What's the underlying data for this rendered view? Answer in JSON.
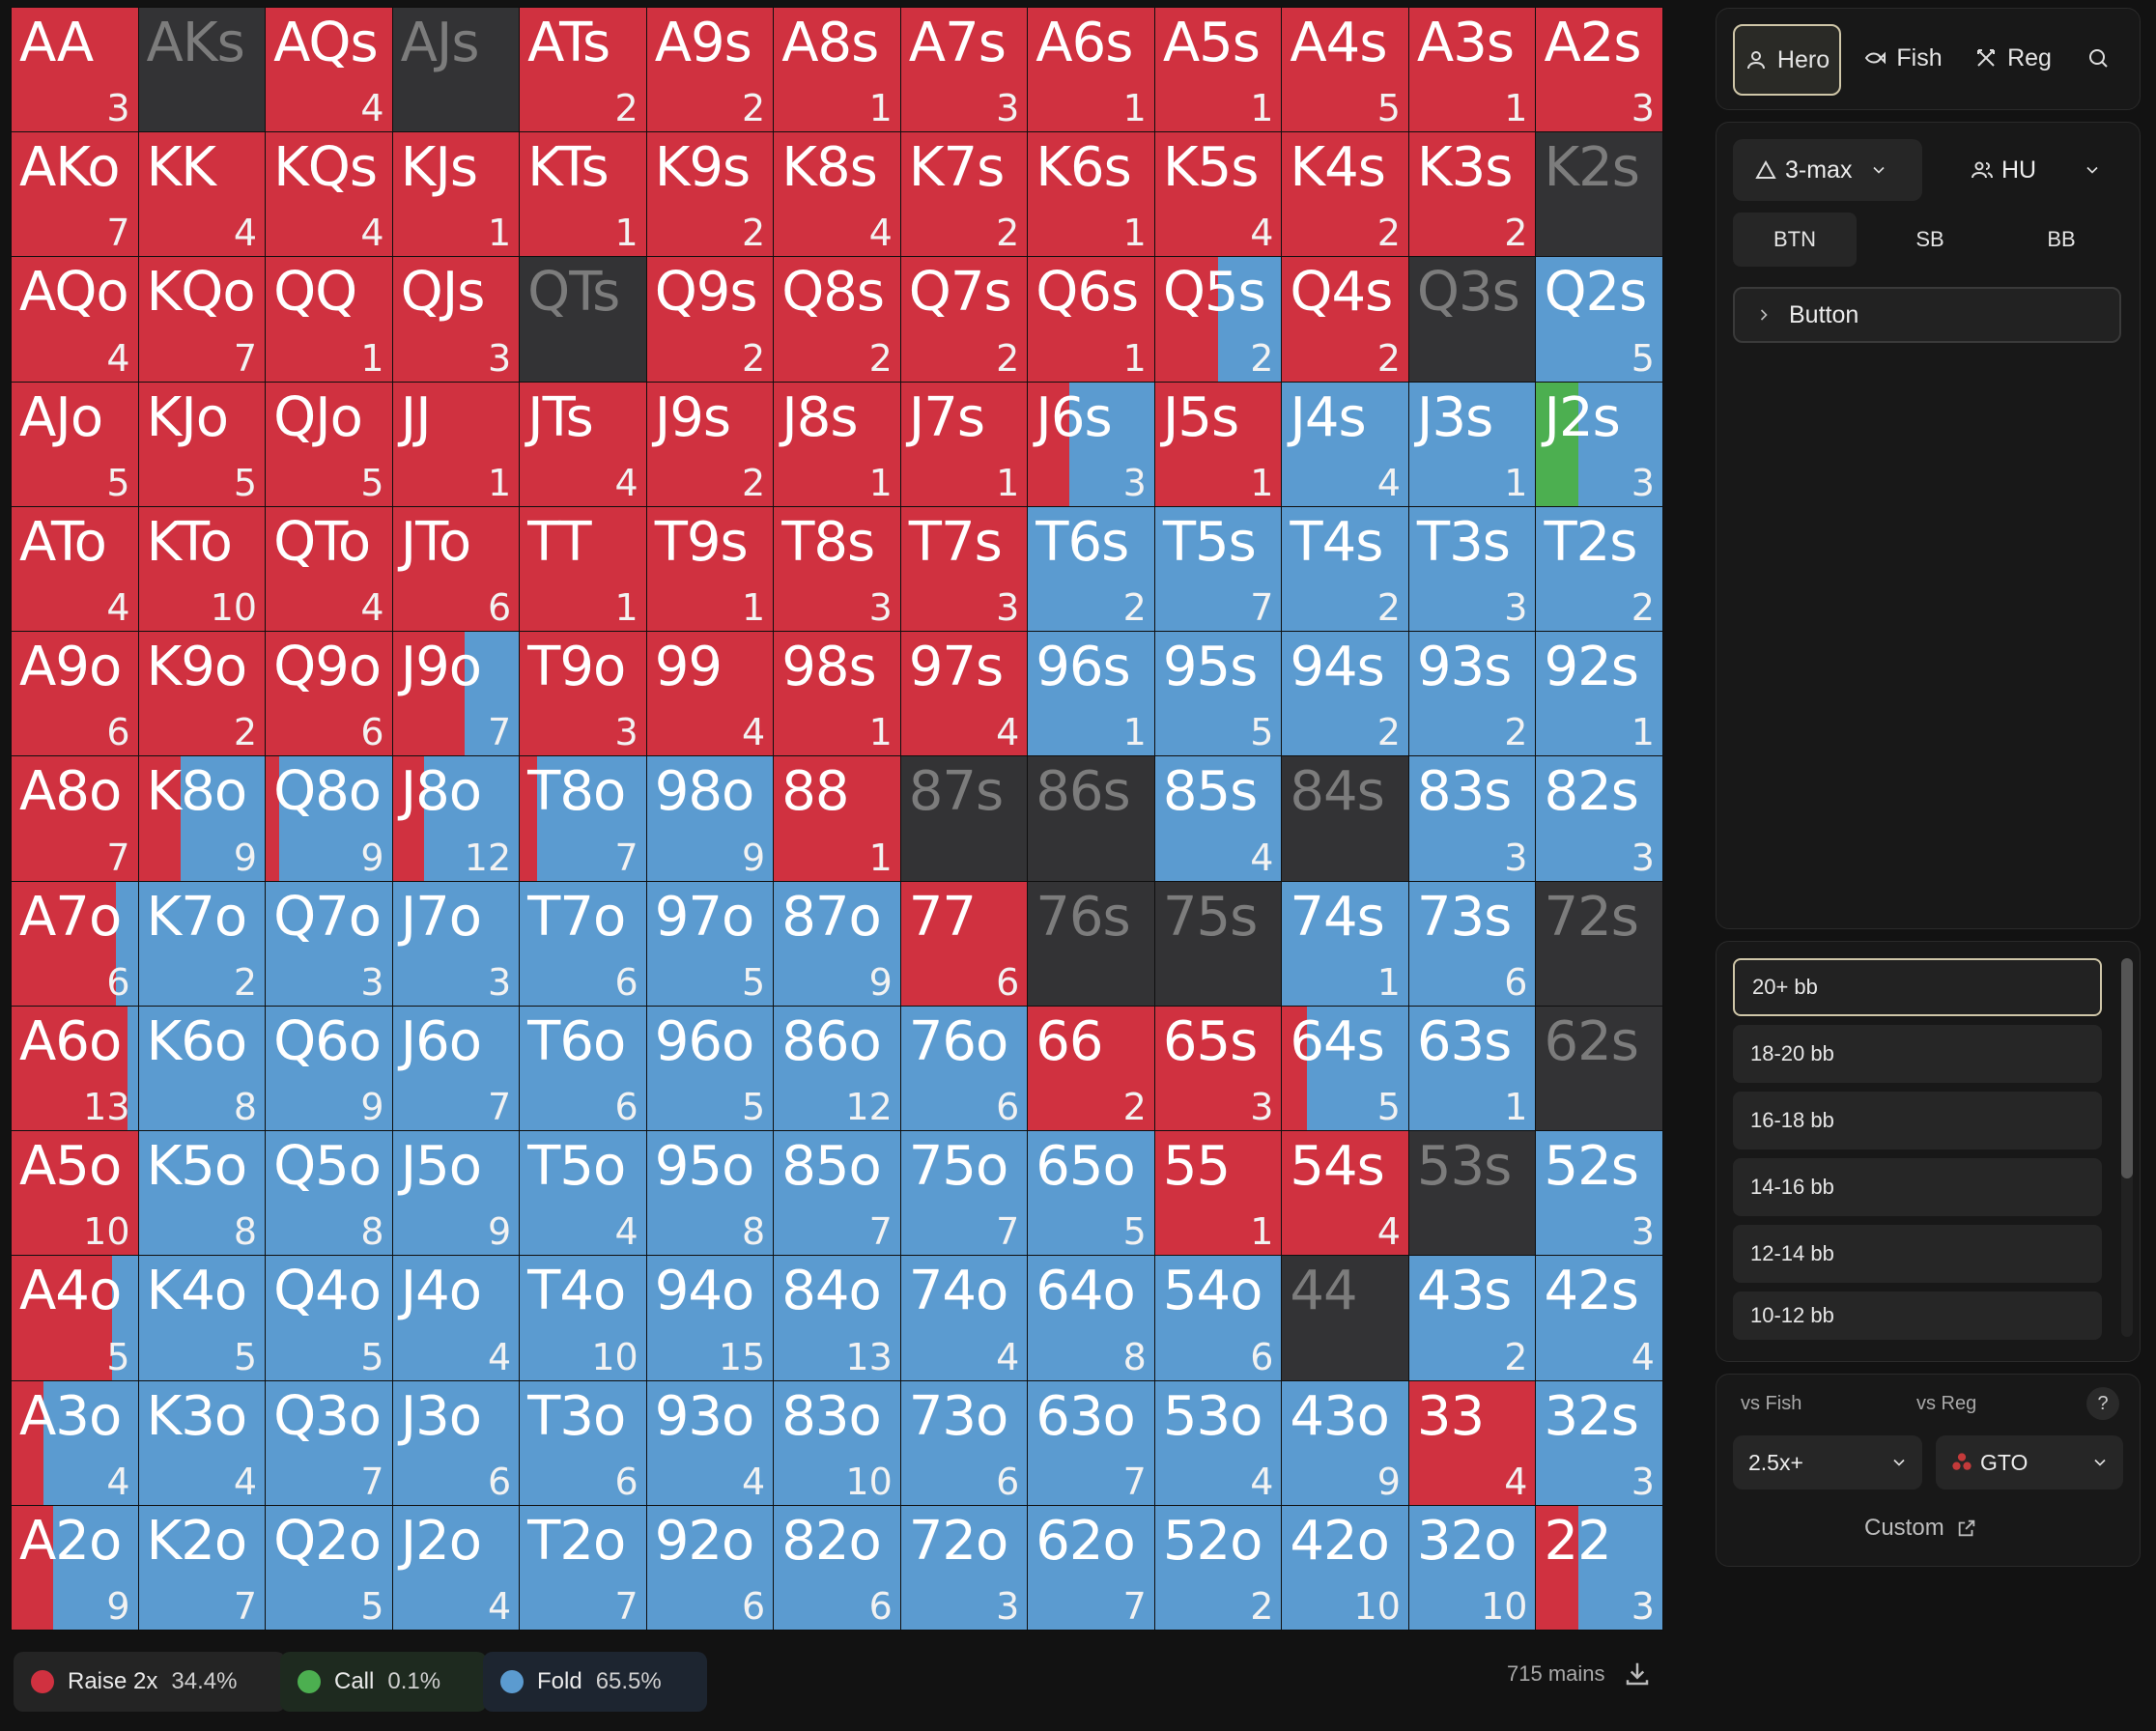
{
  "colors": {
    "raise": "#d03140",
    "call": "#4caf50",
    "fold": "#5b9bd0",
    "empty": "#333335"
  },
  "grid": {
    "ranks": [
      "A",
      "K",
      "Q",
      "J",
      "T",
      "9",
      "8",
      "7",
      "6",
      "5",
      "4",
      "3",
      "2"
    ],
    "cells": [
      [
        {
          "h": "AA",
          "c": "3",
          "r": 1,
          "k": 0
        },
        {
          "h": "AKs",
          "c": "",
          "r": 0,
          "k": 0
        },
        {
          "h": "AQs",
          "c": "4",
          "r": 1,
          "k": 0
        },
        {
          "h": "AJs",
          "c": "",
          "r": 0,
          "k": 0
        },
        {
          "h": "ATs",
          "c": "2",
          "r": 1,
          "k": 0
        },
        {
          "h": "A9s",
          "c": "2",
          "r": 1,
          "k": 0
        },
        {
          "h": "A8s",
          "c": "1",
          "r": 1,
          "k": 0
        },
        {
          "h": "A7s",
          "c": "3",
          "r": 1,
          "k": 0
        },
        {
          "h": "A6s",
          "c": "1",
          "r": 1,
          "k": 0
        },
        {
          "h": "A5s",
          "c": "1",
          "r": 1,
          "k": 0
        },
        {
          "h": "A4s",
          "c": "5",
          "r": 1,
          "k": 0
        },
        {
          "h": "A3s",
          "c": "1",
          "r": 1,
          "k": 0
        },
        {
          "h": "A2s",
          "c": "3",
          "r": 1,
          "k": 0
        }
      ],
      [
        {
          "h": "AKo",
          "c": "7",
          "r": 1,
          "k": 0
        },
        {
          "h": "KK",
          "c": "4",
          "r": 1,
          "k": 0
        },
        {
          "h": "KQs",
          "c": "4",
          "r": 1,
          "k": 0
        },
        {
          "h": "KJs",
          "c": "1",
          "r": 1,
          "k": 0
        },
        {
          "h": "KTs",
          "c": "1",
          "r": 1,
          "k": 0
        },
        {
          "h": "K9s",
          "c": "2",
          "r": 1,
          "k": 0
        },
        {
          "h": "K8s",
          "c": "4",
          "r": 1,
          "k": 0
        },
        {
          "h": "K7s",
          "c": "2",
          "r": 1,
          "k": 0
        },
        {
          "h": "K6s",
          "c": "1",
          "r": 1,
          "k": 0
        },
        {
          "h": "K5s",
          "c": "4",
          "r": 1,
          "k": 0
        },
        {
          "h": "K4s",
          "c": "2",
          "r": 1,
          "k": 0
        },
        {
          "h": "K3s",
          "c": "2",
          "r": 1,
          "k": 0
        },
        {
          "h": "K2s",
          "c": "",
          "r": 0,
          "k": 0
        }
      ],
      [
        {
          "h": "AQo",
          "c": "4",
          "r": 1,
          "k": 0
        },
        {
          "h": "KQo",
          "c": "7",
          "r": 1,
          "k": 0
        },
        {
          "h": "QQ",
          "c": "1",
          "r": 1,
          "k": 0
        },
        {
          "h": "QJs",
          "c": "3",
          "r": 1,
          "k": 0
        },
        {
          "h": "QTs",
          "c": "",
          "r": 0,
          "k": 0
        },
        {
          "h": "Q9s",
          "c": "2",
          "r": 1,
          "k": 0
        },
        {
          "h": "Q8s",
          "c": "2",
          "r": 1,
          "k": 0
        },
        {
          "h": "Q7s",
          "c": "2",
          "r": 1,
          "k": 0
        },
        {
          "h": "Q6s",
          "c": "1",
          "r": 1,
          "k": 0
        },
        {
          "h": "Q5s",
          "c": "2",
          "r": 0.5,
          "k": 0
        },
        {
          "h": "Q4s",
          "c": "2",
          "r": 1,
          "k": 0
        },
        {
          "h": "Q3s",
          "c": "",
          "r": 0,
          "k": 0
        },
        {
          "h": "Q2s",
          "c": "5",
          "r": 0,
          "k": 0
        }
      ],
      [
        {
          "h": "AJo",
          "c": "5",
          "r": 1,
          "k": 0
        },
        {
          "h": "KJo",
          "c": "5",
          "r": 1,
          "k": 0
        },
        {
          "h": "QJo",
          "c": "5",
          "r": 1,
          "k": 0
        },
        {
          "h": "JJ",
          "c": "1",
          "r": 1,
          "k": 0
        },
        {
          "h": "JTs",
          "c": "4",
          "r": 1,
          "k": 0
        },
        {
          "h": "J9s",
          "c": "2",
          "r": 1,
          "k": 0
        },
        {
          "h": "J8s",
          "c": "1",
          "r": 1,
          "k": 0
        },
        {
          "h": "J7s",
          "c": "1",
          "r": 1,
          "k": 0
        },
        {
          "h": "J6s",
          "c": "3",
          "r": 0.33,
          "k": 0
        },
        {
          "h": "J5s",
          "c": "1",
          "r": 1,
          "k": 0
        },
        {
          "h": "J4s",
          "c": "4",
          "r": 0,
          "k": 0
        },
        {
          "h": "J3s",
          "c": "1",
          "r": 0,
          "k": 0
        },
        {
          "h": "J2s",
          "c": "3",
          "r": 0,
          "k": 0.33
        }
      ],
      [
        {
          "h": "ATo",
          "c": "4",
          "r": 1,
          "k": 0
        },
        {
          "h": "KTo",
          "c": "10",
          "r": 1,
          "k": 0
        },
        {
          "h": "QTo",
          "c": "4",
          "r": 1,
          "k": 0
        },
        {
          "h": "JTo",
          "c": "6",
          "r": 1,
          "k": 0
        },
        {
          "h": "TT",
          "c": "1",
          "r": 1,
          "k": 0
        },
        {
          "h": "T9s",
          "c": "1",
          "r": 1,
          "k": 0
        },
        {
          "h": "T8s",
          "c": "3",
          "r": 1,
          "k": 0
        },
        {
          "h": "T7s",
          "c": "3",
          "r": 1,
          "k": 0
        },
        {
          "h": "T6s",
          "c": "2",
          "r": 0,
          "k": 0
        },
        {
          "h": "T5s",
          "c": "7",
          "r": 0,
          "k": 0
        },
        {
          "h": "T4s",
          "c": "2",
          "r": 0,
          "k": 0
        },
        {
          "h": "T3s",
          "c": "3",
          "r": 0,
          "k": 0
        },
        {
          "h": "T2s",
          "c": "2",
          "r": 0,
          "k": 0
        }
      ],
      [
        {
          "h": "A9o",
          "c": "6",
          "r": 1,
          "k": 0
        },
        {
          "h": "K9o",
          "c": "2",
          "r": 1,
          "k": 0
        },
        {
          "h": "Q9o",
          "c": "6",
          "r": 1,
          "k": 0
        },
        {
          "h": "J9o",
          "c": "7",
          "r": 0.57,
          "k": 0
        },
        {
          "h": "T9o",
          "c": "3",
          "r": 1,
          "k": 0
        },
        {
          "h": "99",
          "c": "4",
          "r": 1,
          "k": 0
        },
        {
          "h": "98s",
          "c": "1",
          "r": 1,
          "k": 0
        },
        {
          "h": "97s",
          "c": "4",
          "r": 1,
          "k": 0
        },
        {
          "h": "96s",
          "c": "1",
          "r": 0,
          "k": 0
        },
        {
          "h": "95s",
          "c": "5",
          "r": 0,
          "k": 0
        },
        {
          "h": "94s",
          "c": "2",
          "r": 0,
          "k": 0
        },
        {
          "h": "93s",
          "c": "2",
          "r": 0,
          "k": 0
        },
        {
          "h": "92s",
          "c": "1",
          "r": 0,
          "k": 0
        }
      ],
      [
        {
          "h": "A8o",
          "c": "7",
          "r": 1,
          "k": 0
        },
        {
          "h": "K8o",
          "c": "9",
          "r": 0.33,
          "k": 0
        },
        {
          "h": "Q8o",
          "c": "9",
          "r": 0.11,
          "k": 0
        },
        {
          "h": "J8o",
          "c": "12",
          "r": 0.25,
          "k": 0
        },
        {
          "h": "T8o",
          "c": "7",
          "r": 0.14,
          "k": 0
        },
        {
          "h": "98o",
          "c": "9",
          "r": 0,
          "k": 0
        },
        {
          "h": "88",
          "c": "1",
          "r": 1,
          "k": 0
        },
        {
          "h": "87s",
          "c": "",
          "r": 0,
          "k": 0
        },
        {
          "h": "86s",
          "c": "",
          "r": 0,
          "k": 0
        },
        {
          "h": "85s",
          "c": "4",
          "r": 0,
          "k": 0
        },
        {
          "h": "84s",
          "c": "",
          "r": 0,
          "k": 0
        },
        {
          "h": "83s",
          "c": "3",
          "r": 0,
          "k": 0
        },
        {
          "h": "82s",
          "c": "3",
          "r": 0,
          "k": 0
        }
      ],
      [
        {
          "h": "A7o",
          "c": "6",
          "r": 0.83,
          "k": 0
        },
        {
          "h": "K7o",
          "c": "2",
          "r": 0,
          "k": 0
        },
        {
          "h": "Q7o",
          "c": "3",
          "r": 0,
          "k": 0
        },
        {
          "h": "J7o",
          "c": "3",
          "r": 0,
          "k": 0
        },
        {
          "h": "T7o",
          "c": "6",
          "r": 0,
          "k": 0
        },
        {
          "h": "97o",
          "c": "5",
          "r": 0,
          "k": 0
        },
        {
          "h": "87o",
          "c": "9",
          "r": 0,
          "k": 0
        },
        {
          "h": "77",
          "c": "6",
          "r": 1,
          "k": 0
        },
        {
          "h": "76s",
          "c": "",
          "r": 0,
          "k": 0
        },
        {
          "h": "75s",
          "c": "",
          "r": 0,
          "k": 0
        },
        {
          "h": "74s",
          "c": "1",
          "r": 0,
          "k": 0
        },
        {
          "h": "73s",
          "c": "6",
          "r": 0,
          "k": 0
        },
        {
          "h": "72s",
          "c": "",
          "r": 0,
          "k": 0
        }
      ],
      [
        {
          "h": "A6o",
          "c": "13",
          "r": 0.92,
          "k": 0
        },
        {
          "h": "K6o",
          "c": "8",
          "r": 0,
          "k": 0
        },
        {
          "h": "Q6o",
          "c": "9",
          "r": 0,
          "k": 0
        },
        {
          "h": "J6o",
          "c": "7",
          "r": 0,
          "k": 0
        },
        {
          "h": "T6o",
          "c": "6",
          "r": 0,
          "k": 0
        },
        {
          "h": "96o",
          "c": "5",
          "r": 0,
          "k": 0
        },
        {
          "h": "86o",
          "c": "12",
          "r": 0,
          "k": 0
        },
        {
          "h": "76o",
          "c": "6",
          "r": 0,
          "k": 0
        },
        {
          "h": "66",
          "c": "2",
          "r": 1,
          "k": 0
        },
        {
          "h": "65s",
          "c": "3",
          "r": 1,
          "k": 0
        },
        {
          "h": "64s",
          "c": "5",
          "r": 0.2,
          "k": 0
        },
        {
          "h": "63s",
          "c": "1",
          "r": 0,
          "k": 0
        },
        {
          "h": "62s",
          "c": "",
          "r": 0,
          "k": 0
        }
      ],
      [
        {
          "h": "A5o",
          "c": "10",
          "r": 1,
          "k": 0
        },
        {
          "h": "K5o",
          "c": "8",
          "r": 0,
          "k": 0
        },
        {
          "h": "Q5o",
          "c": "8",
          "r": 0,
          "k": 0
        },
        {
          "h": "J5o",
          "c": "9",
          "r": 0,
          "k": 0
        },
        {
          "h": "T5o",
          "c": "4",
          "r": 0,
          "k": 0
        },
        {
          "h": "95o",
          "c": "8",
          "r": 0,
          "k": 0
        },
        {
          "h": "85o",
          "c": "7",
          "r": 0,
          "k": 0
        },
        {
          "h": "75o",
          "c": "7",
          "r": 0,
          "k": 0
        },
        {
          "h": "65o",
          "c": "5",
          "r": 0,
          "k": 0
        },
        {
          "h": "55",
          "c": "1",
          "r": 1,
          "k": 0
        },
        {
          "h": "54s",
          "c": "4",
          "r": 1,
          "k": 0
        },
        {
          "h": "53s",
          "c": "",
          "r": 0,
          "k": 0
        },
        {
          "h": "52s",
          "c": "3",
          "r": 0,
          "k": 0
        }
      ],
      [
        {
          "h": "A4o",
          "c": "5",
          "r": 0.8,
          "k": 0
        },
        {
          "h": "K4o",
          "c": "5",
          "r": 0,
          "k": 0
        },
        {
          "h": "Q4o",
          "c": "5",
          "r": 0,
          "k": 0
        },
        {
          "h": "J4o",
          "c": "4",
          "r": 0,
          "k": 0
        },
        {
          "h": "T4o",
          "c": "10",
          "r": 0,
          "k": 0
        },
        {
          "h": "94o",
          "c": "15",
          "r": 0,
          "k": 0
        },
        {
          "h": "84o",
          "c": "13",
          "r": 0,
          "k": 0
        },
        {
          "h": "74o",
          "c": "4",
          "r": 0,
          "k": 0
        },
        {
          "h": "64o",
          "c": "8",
          "r": 0,
          "k": 0
        },
        {
          "h": "54o",
          "c": "6",
          "r": 0,
          "k": 0
        },
        {
          "h": "44",
          "c": "",
          "r": 0,
          "k": 0
        },
        {
          "h": "43s",
          "c": "2",
          "r": 0,
          "k": 0
        },
        {
          "h": "42s",
          "c": "4",
          "r": 0,
          "k": 0
        }
      ],
      [
        {
          "h": "A3o",
          "c": "4",
          "r": 0.25,
          "k": 0
        },
        {
          "h": "K3o",
          "c": "4",
          "r": 0,
          "k": 0
        },
        {
          "h": "Q3o",
          "c": "7",
          "r": 0,
          "k": 0
        },
        {
          "h": "J3o",
          "c": "6",
          "r": 0,
          "k": 0
        },
        {
          "h": "T3o",
          "c": "6",
          "r": 0,
          "k": 0
        },
        {
          "h": "93o",
          "c": "4",
          "r": 0,
          "k": 0
        },
        {
          "h": "83o",
          "c": "10",
          "r": 0,
          "k": 0
        },
        {
          "h": "73o",
          "c": "6",
          "r": 0,
          "k": 0
        },
        {
          "h": "63o",
          "c": "7",
          "r": 0,
          "k": 0
        },
        {
          "h": "53o",
          "c": "4",
          "r": 0,
          "k": 0
        },
        {
          "h": "43o",
          "c": "9",
          "r": 0,
          "k": 0
        },
        {
          "h": "33",
          "c": "4",
          "r": 1,
          "k": 0
        },
        {
          "h": "32s",
          "c": "3",
          "r": 0,
          "k": 0
        }
      ],
      [
        {
          "h": "A2o",
          "c": "9",
          "r": 0.33,
          "k": 0
        },
        {
          "h": "K2o",
          "c": "7",
          "r": 0,
          "k": 0
        },
        {
          "h": "Q2o",
          "c": "5",
          "r": 0,
          "k": 0
        },
        {
          "h": "J2o",
          "c": "4",
          "r": 0,
          "k": 0
        },
        {
          "h": "T2o",
          "c": "7",
          "r": 0,
          "k": 0
        },
        {
          "h": "92o",
          "c": "6",
          "r": 0,
          "k": 0
        },
        {
          "h": "82o",
          "c": "6",
          "r": 0,
          "k": 0
        },
        {
          "h": "72o",
          "c": "3",
          "r": 0,
          "k": 0
        },
        {
          "h": "62o",
          "c": "7",
          "r": 0,
          "k": 0
        },
        {
          "h": "52o",
          "c": "2",
          "r": 0,
          "k": 0
        },
        {
          "h": "42o",
          "c": "10",
          "r": 0,
          "k": 0
        },
        {
          "h": "32o",
          "c": "10",
          "r": 0,
          "k": 0
        },
        {
          "h": "22",
          "c": "3",
          "r": 0.33,
          "k": 0
        }
      ]
    ]
  },
  "legend": [
    {
      "label": "Raise 2x",
      "pct": "34.4%",
      "color": "#d03140"
    },
    {
      "label": "Call",
      "pct": "0.1%",
      "color": "#4caf50"
    },
    {
      "label": "Fold",
      "pct": "65.5%",
      "color": "#5b9bd0"
    }
  ],
  "mains": "715 mains",
  "player_tabs": {
    "hero": "Hero",
    "fish": "Fish",
    "reg": "Reg"
  },
  "format_select": "3-max",
  "mode_select": "HU",
  "positions": [
    "BTN",
    "SB",
    "BB"
  ],
  "position_label": "Button",
  "stacks": [
    "20+ bb",
    "18-20 bb",
    "16-18 bb",
    "14-16 bb",
    "12-14 bb",
    "10-12 bb"
  ],
  "vs": {
    "fish_label": "vs Fish",
    "reg_label": "vs Reg",
    "help": "?",
    "fish_value": "2.5x+",
    "reg_value": "GTO",
    "custom": "Custom"
  }
}
